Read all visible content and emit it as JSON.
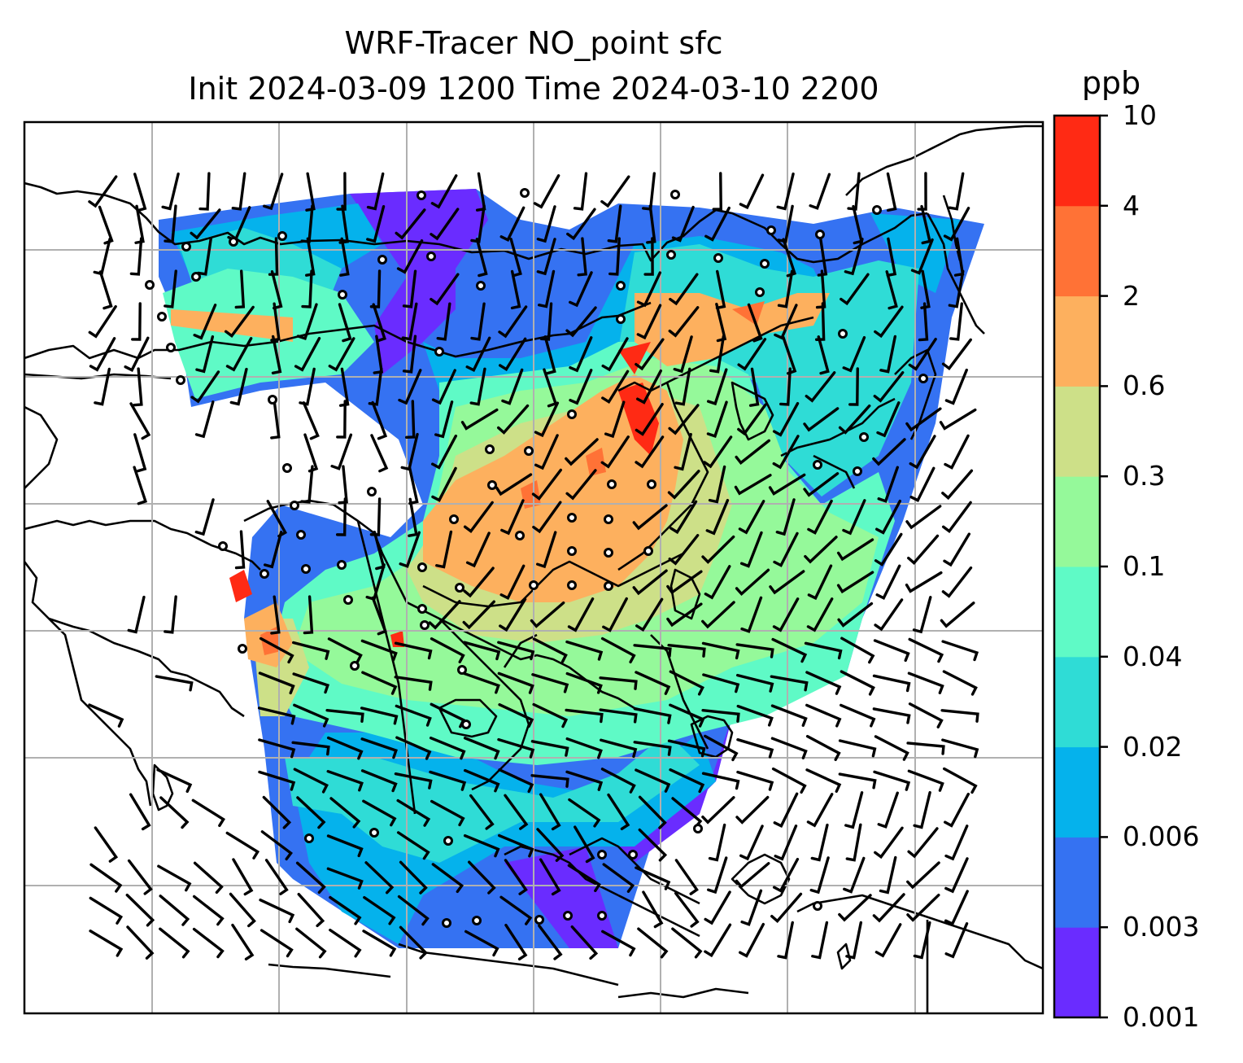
{
  "title": {
    "line1": "WRF-Tracer NO_point sfc",
    "line2": "Init 2024-03-09 1200 Time 2024-03-10 2200"
  },
  "colorbar": {
    "unit": "ppb",
    "levels": [
      "0.001",
      "0.003",
      "0.006",
      "0.02",
      "0.04",
      "0.1",
      "0.3",
      "0.6",
      "2",
      "4",
      "10"
    ],
    "colors": [
      "#6a2cff",
      "#3572f2",
      "#05b2ec",
      "#2fdcd6",
      "#5ffac6",
      "#95f99a",
      "#cde088",
      "#fdb05e",
      "#ff7236",
      "#ff2a14"
    ]
  },
  "map": {
    "projection_grid": "on",
    "content": "surface tracer concentration field with wind barbs and coastlines over South/East Asia"
  }
}
